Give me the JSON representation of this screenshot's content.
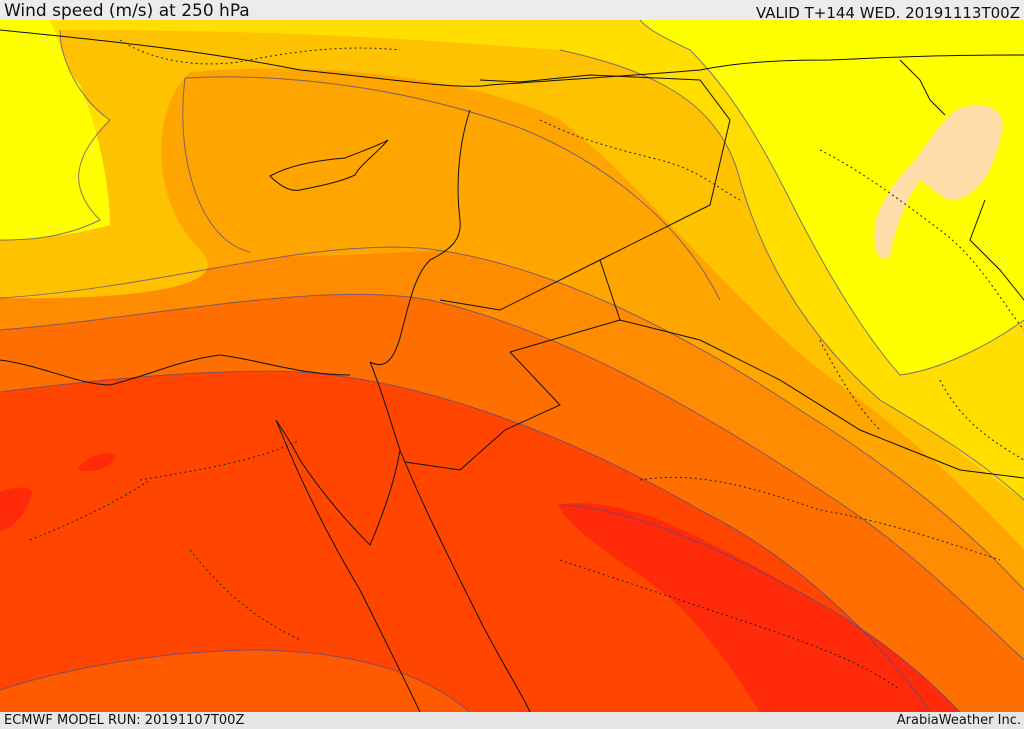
{
  "header": {
    "title": "Wind speed (m/s) at 250 hPa",
    "valid": "VALID T+144 WED. 20191113T00Z"
  },
  "footer": {
    "model_run": "ECMWF MODEL RUN: 20191107T00Z",
    "credit": "ArabiaWeather Inc."
  },
  "map": {
    "colors": {
      "yellow": "#ffff00",
      "gold": "#ffde00",
      "amber": "#ffc200",
      "orange_light": "#ffa500",
      "orange": "#ff8c00",
      "orange_dark": "#ff6f00",
      "red_orange": "#ff5a00",
      "red": "#ff4500",
      "deep_red": "#ff2a0a",
      "peach": "#ffdeaa"
    }
  }
}
